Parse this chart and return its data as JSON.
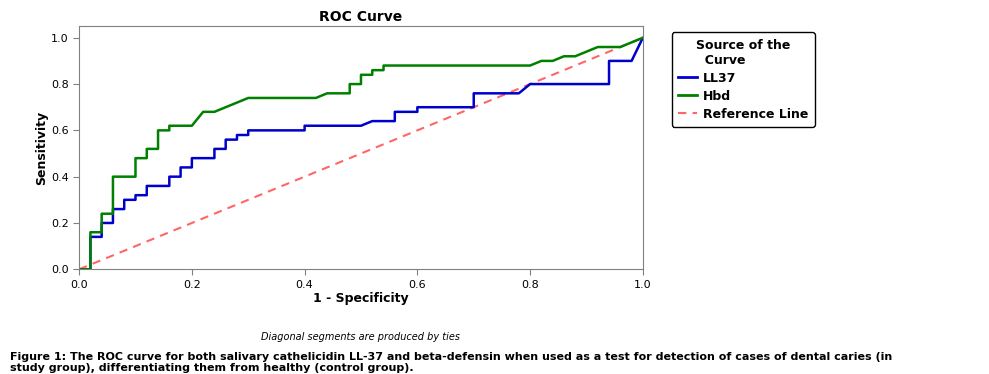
{
  "title": "ROC Curve",
  "xlabel": "1 - Specificity",
  "ylabel": "Sensitivity",
  "subtitle": "Diagonal segments are produced by ties",
  "legend_title": "Source of the\n  Curve",
  "legend_entries": [
    "LL37",
    "Hbd",
    "Reference Line"
  ],
  "colors": {
    "LL37": "#0000CC",
    "Hbd": "#008000",
    "reference": "#FF6666"
  },
  "caption": "Figure 1: The ROC curve for both salivary cathelicidin LL-37 and beta-defensin when used as a test for detection of cases of dental caries (in\nstudy group), differentiating them from healthy (control group).",
  "LL37_x": [
    0.0,
    0.02,
    0.02,
    0.04,
    0.04,
    0.06,
    0.06,
    0.08,
    0.08,
    0.1,
    0.1,
    0.12,
    0.12,
    0.14,
    0.16,
    0.16,
    0.18,
    0.18,
    0.2,
    0.2,
    0.22,
    0.24,
    0.24,
    0.26,
    0.26,
    0.28,
    0.28,
    0.3,
    0.3,
    0.32,
    0.34,
    0.36,
    0.38,
    0.4,
    0.4,
    0.42,
    0.44,
    0.46,
    0.48,
    0.5,
    0.52,
    0.54,
    0.56,
    0.56,
    0.58,
    0.6,
    0.6,
    0.62,
    0.64,
    0.66,
    0.68,
    0.7,
    0.7,
    0.72,
    0.74,
    0.76,
    0.78,
    0.8,
    0.82,
    0.84,
    0.86,
    0.88,
    0.9,
    0.92,
    0.94,
    0.94,
    0.96,
    0.98,
    1.0
  ],
  "LL37_y": [
    0.0,
    0.0,
    0.14,
    0.14,
    0.2,
    0.2,
    0.26,
    0.26,
    0.3,
    0.3,
    0.32,
    0.32,
    0.36,
    0.36,
    0.36,
    0.4,
    0.4,
    0.44,
    0.44,
    0.48,
    0.48,
    0.48,
    0.52,
    0.52,
    0.56,
    0.56,
    0.58,
    0.58,
    0.6,
    0.6,
    0.6,
    0.6,
    0.6,
    0.6,
    0.62,
    0.62,
    0.62,
    0.62,
    0.62,
    0.62,
    0.64,
    0.64,
    0.64,
    0.68,
    0.68,
    0.68,
    0.7,
    0.7,
    0.7,
    0.7,
    0.7,
    0.7,
    0.76,
    0.76,
    0.76,
    0.76,
    0.76,
    0.8,
    0.8,
    0.8,
    0.8,
    0.8,
    0.8,
    0.8,
    0.8,
    0.9,
    0.9,
    0.9,
    1.0
  ],
  "Hbd_x": [
    0.0,
    0.02,
    0.02,
    0.04,
    0.04,
    0.06,
    0.06,
    0.1,
    0.1,
    0.12,
    0.12,
    0.14,
    0.14,
    0.16,
    0.16,
    0.18,
    0.2,
    0.22,
    0.24,
    0.26,
    0.28,
    0.3,
    0.32,
    0.34,
    0.36,
    0.38,
    0.4,
    0.42,
    0.44,
    0.46,
    0.48,
    0.48,
    0.5,
    0.5,
    0.52,
    0.52,
    0.54,
    0.54,
    0.56,
    0.58,
    0.6,
    0.62,
    0.64,
    0.66,
    0.68,
    0.7,
    0.72,
    0.74,
    0.76,
    0.78,
    0.8,
    0.82,
    0.84,
    0.86,
    0.88,
    0.9,
    0.92,
    0.94,
    0.96,
    0.98,
    1.0
  ],
  "Hbd_y": [
    0.0,
    0.0,
    0.16,
    0.16,
    0.24,
    0.24,
    0.4,
    0.4,
    0.48,
    0.48,
    0.52,
    0.52,
    0.6,
    0.6,
    0.62,
    0.62,
    0.62,
    0.68,
    0.68,
    0.7,
    0.72,
    0.74,
    0.74,
    0.74,
    0.74,
    0.74,
    0.74,
    0.74,
    0.76,
    0.76,
    0.76,
    0.8,
    0.8,
    0.84,
    0.84,
    0.86,
    0.86,
    0.88,
    0.88,
    0.88,
    0.88,
    0.88,
    0.88,
    0.88,
    0.88,
    0.88,
    0.88,
    0.88,
    0.88,
    0.88,
    0.88,
    0.9,
    0.9,
    0.92,
    0.92,
    0.94,
    0.96,
    0.96,
    0.96,
    0.98,
    1.0
  ],
  "xlim": [
    0.0,
    1.0
  ],
  "ylim": [
    0.0,
    1.05
  ],
  "xticks": [
    0.0,
    0.2,
    0.4,
    0.6,
    0.8,
    1.0
  ],
  "yticks": [
    0.0,
    0.2,
    0.4,
    0.6,
    0.8,
    1.0
  ],
  "background_color": "#ffffff",
  "plot_bg_color": "#ffffff"
}
